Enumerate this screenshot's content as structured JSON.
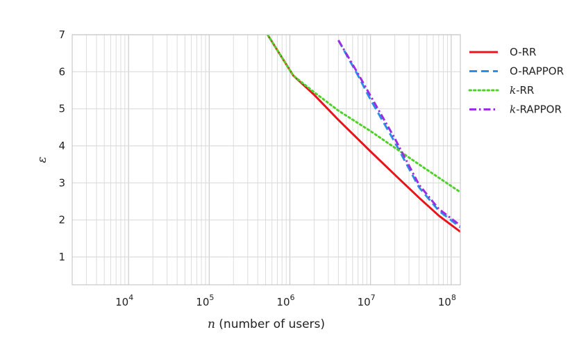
{
  "chart_data": {
    "type": "line",
    "title": "",
    "xlabel_var": "n",
    "xlabel_rest": " (number of users)",
    "ylabel": "ε",
    "x_scale": "log",
    "xlim": [
      2000,
      130000000
    ],
    "ylim": [
      0.25,
      7
    ],
    "yticks": [
      1,
      2,
      3,
      4,
      5,
      6,
      7
    ],
    "xticks": [
      {
        "value": 10000,
        "base": "10",
        "exp": "4"
      },
      {
        "value": 100000,
        "base": "10",
        "exp": "5"
      },
      {
        "value": 1000000,
        "base": "10",
        "exp": "6"
      },
      {
        "value": 10000000,
        "base": "10",
        "exp": "7"
      },
      {
        "value": 100000000,
        "base": "10",
        "exp": "8"
      }
    ],
    "grid": true,
    "legend_position": "right-top-outside",
    "series": [
      {
        "name_var": "",
        "name_rest": "O-RR",
        "color": "#e8141b",
        "style": "solid",
        "points": [
          [
            530000,
            7.0
          ],
          [
            1100000,
            5.9
          ],
          [
            2000000,
            5.38
          ],
          [
            4000000,
            4.7
          ],
          [
            10000000,
            3.85
          ],
          [
            20000000,
            3.22
          ],
          [
            40000000,
            2.6
          ],
          [
            70000000,
            2.12
          ],
          [
            130000000,
            1.68
          ]
        ]
      },
      {
        "name_var": "",
        "name_rest": "O-RAPPOR",
        "color": "#2b8fe6",
        "style": "dashed",
        "points": [
          [
            4000000,
            6.85
          ],
          [
            7000000,
            5.9
          ],
          [
            10000000,
            5.25
          ],
          [
            20000000,
            4.1
          ],
          [
            40000000,
            2.88
          ],
          [
            70000000,
            2.25
          ],
          [
            130000000,
            1.8
          ]
        ]
      },
      {
        "name_var": "k",
        "name_rest": "-RR",
        "color": "#4fd12a",
        "style": "dotted",
        "points": [
          [
            530000,
            7.0
          ],
          [
            1100000,
            5.9
          ],
          [
            2000000,
            5.45
          ],
          [
            4000000,
            4.95
          ],
          [
            10000000,
            4.4
          ],
          [
            20000000,
            3.95
          ],
          [
            40000000,
            3.5
          ],
          [
            130000000,
            2.75
          ]
        ]
      },
      {
        "name_var": "k",
        "name_rest": "-RAPPOR",
        "color": "#9a2ee0",
        "style": "dashdot",
        "points": [
          [
            4000000,
            6.85
          ],
          [
            7000000,
            5.95
          ],
          [
            10000000,
            5.35
          ],
          [
            20000000,
            4.2
          ],
          [
            40000000,
            2.95
          ],
          [
            70000000,
            2.3
          ],
          [
            130000000,
            1.85
          ]
        ]
      }
    ]
  }
}
